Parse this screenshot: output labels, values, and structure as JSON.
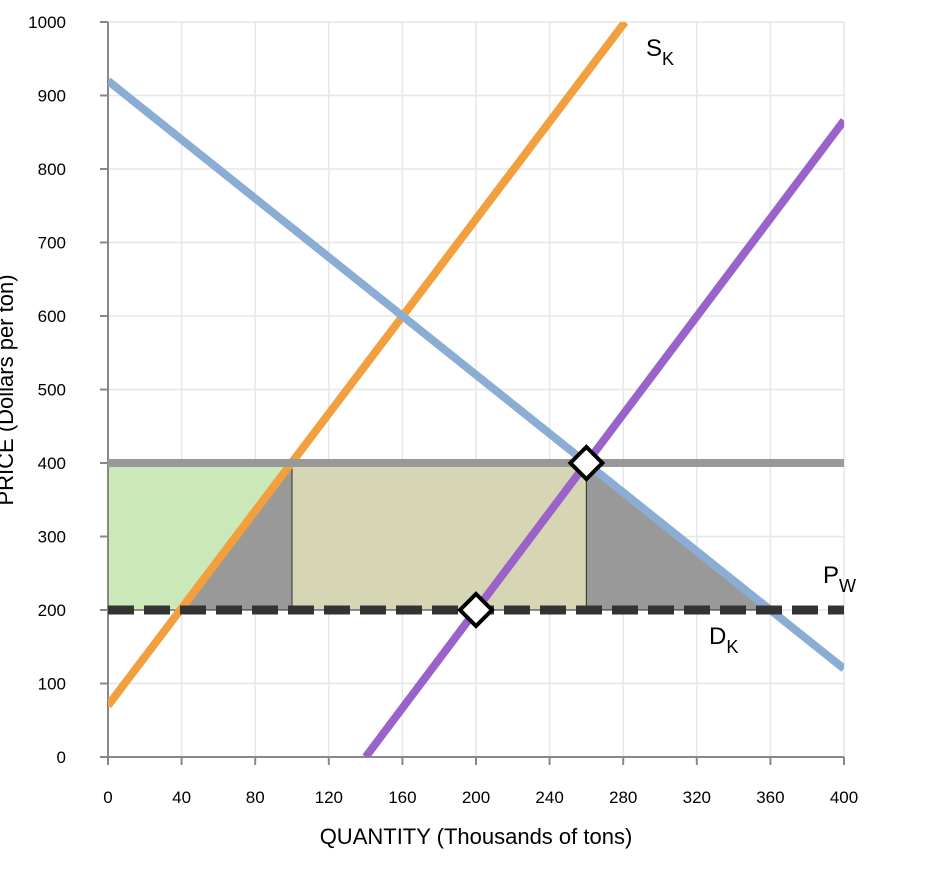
{
  "chart_data": {
    "type": "line",
    "xlabel": "QUANTITY (Thousands of tons)",
    "ylabel": "PRICE (Dollars per ton)",
    "xlim": [
      0,
      400
    ],
    "ylim": [
      0,
      1000
    ],
    "xticks": [
      "0",
      "40",
      "80",
      "120",
      "160",
      "200",
      "240",
      "280",
      "320",
      "360",
      "400"
    ],
    "yticks": [
      "0",
      "100",
      "200",
      "300",
      "400",
      "500",
      "600",
      "700",
      "800",
      "900",
      "1000"
    ],
    "grid": true,
    "series": [
      {
        "label_main": "S",
        "label_sub": "K",
        "color": "#f2a03d",
        "x": [
          0,
          281
        ],
        "y": [
          70,
          1000
        ]
      },
      {
        "label_main": "D",
        "label_sub": "K",
        "color": "#8aadd3",
        "x": [
          0,
          400
        ],
        "y": [
          920,
          120
        ]
      },
      {
        "label_main": "",
        "label_sub": "",
        "color": "#9b63c9",
        "x": [
          140,
          400
        ],
        "y": [
          0,
          866
        ]
      },
      {
        "label_main": "",
        "label_sub": "",
        "color": "#999999",
        "x": [
          0,
          400
        ],
        "y": [
          400,
          400
        ]
      },
      {
        "label_main": "P",
        "label_sub": "W",
        "color": "#333333",
        "dashed": true,
        "x": [
          0,
          400
        ],
        "y": [
          200,
          200
        ]
      }
    ],
    "shaded_regions": [
      {
        "color": "#cbe8b9",
        "points": [
          [
            0,
            200
          ],
          [
            0,
            400
          ],
          [
            100,
            400
          ],
          [
            40,
            200
          ]
        ]
      },
      {
        "color": "#999999",
        "points": [
          [
            40,
            200
          ],
          [
            100,
            400
          ],
          [
            100,
            200
          ]
        ]
      },
      {
        "color": "#d6d6b5",
        "points": [
          [
            100,
            200
          ],
          [
            100,
            400
          ],
          [
            260,
            400
          ],
          [
            260,
            200
          ]
        ]
      },
      {
        "color": "#999999",
        "points": [
          [
            260,
            200
          ],
          [
            260,
            400
          ],
          [
            360,
            200
          ]
        ]
      }
    ],
    "markers": [
      {
        "shape": "diamond",
        "x": 260,
        "y": 400
      },
      {
        "shape": "diamond",
        "x": 200,
        "y": 200
      }
    ]
  }
}
